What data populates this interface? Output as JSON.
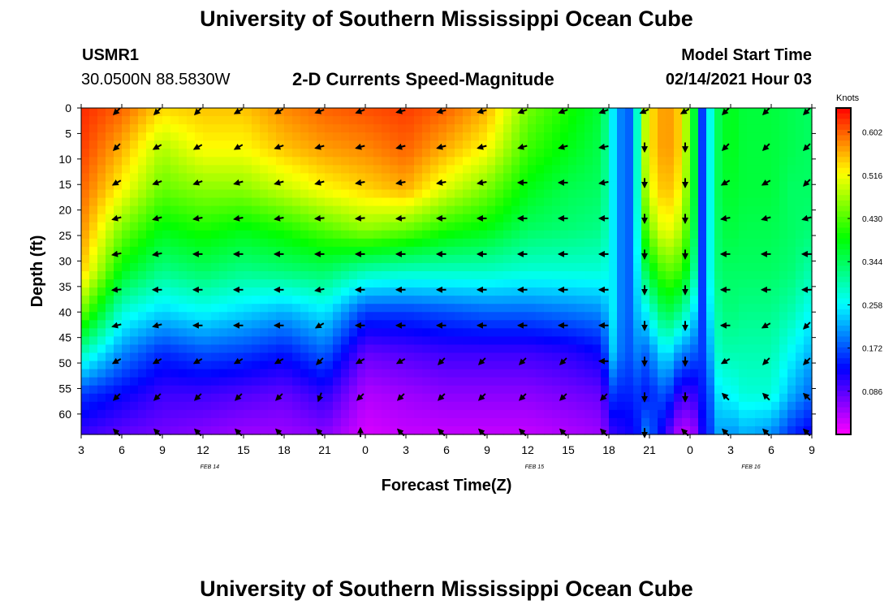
{
  "page": {
    "title": "University of Southern Mississippi Ocean Cube",
    "footer_title": "University of Southern Mississippi Ocean Cube",
    "station_id": "USMR1",
    "station_coords": "30.0500N 88.5830W",
    "plot_subtitle": "2-D Currents Speed-Magnitude",
    "model_start_label": "Model Start Time",
    "model_start_value": "02/14/2021 Hour 03"
  },
  "chart_data": {
    "type": "heatmap",
    "title": "2-D Currents Speed-Magnitude",
    "xlabel": "Forecast Time(Z)",
    "ylabel": "Depth (ft)",
    "colorbar_label": "Knots",
    "x_tick_labels": [
      "3",
      "6",
      "9",
      "12",
      "15",
      "18",
      "21",
      "0",
      "3",
      "6",
      "9",
      "12",
      "15",
      "18",
      "21",
      "0",
      "3",
      "6",
      "9"
    ],
    "x_hours_range": [
      0,
      54
    ],
    "date_labels": [
      {
        "label": "FEB 14",
        "hour": 9.5
      },
      {
        "label": "FEB 15",
        "hour": 33.5
      },
      {
        "label": "FEB 16",
        "hour": 49.5
      }
    ],
    "y_ticks": [
      0,
      5,
      10,
      15,
      20,
      25,
      30,
      35,
      40,
      45,
      50,
      55,
      60
    ],
    "ylim": [
      0,
      64
    ],
    "colorbar_ticks": [
      "0.602",
      "0.516",
      "0.430",
      "0.344",
      "0.258",
      "0.172",
      "0.086"
    ],
    "colorbar_range": [
      0.0,
      0.65
    ],
    "speed_columns_hours": [
      0,
      3,
      6,
      9,
      12,
      15,
      18,
      21,
      24,
      27,
      30,
      33,
      36,
      38.5,
      39.2,
      40.3,
      40.9,
      41.8,
      43.2,
      44.3,
      45.2,
      45.9,
      46.5,
      47.2,
      48,
      49,
      51,
      52.5,
      54
    ],
    "speed_rows_depth_ft": [
      0,
      8,
      16,
      24,
      32,
      40,
      48,
      56,
      64
    ],
    "speed_knots": [
      [
        0.63,
        0.62,
        0.6,
        0.58,
        0.55,
        0.45,
        0.3,
        0.16,
        0.1
      ],
      [
        0.6,
        0.56,
        0.52,
        0.45,
        0.38,
        0.28,
        0.2,
        0.13,
        0.08
      ],
      [
        0.54,
        0.48,
        0.44,
        0.38,
        0.32,
        0.24,
        0.15,
        0.1,
        0.07
      ],
      [
        0.55,
        0.52,
        0.46,
        0.4,
        0.34,
        0.26,
        0.17,
        0.1,
        0.06
      ],
      [
        0.55,
        0.52,
        0.46,
        0.38,
        0.32,
        0.24,
        0.16,
        0.09,
        0.05
      ],
      [
        0.58,
        0.55,
        0.49,
        0.4,
        0.33,
        0.22,
        0.14,
        0.08,
        0.05
      ],
      [
        0.6,
        0.57,
        0.52,
        0.43,
        0.34,
        0.25,
        0.18,
        0.11,
        0.06
      ],
      [
        0.61,
        0.58,
        0.54,
        0.46,
        0.3,
        0.16,
        0.08,
        0.04,
        0.02
      ],
      [
        0.62,
        0.6,
        0.56,
        0.44,
        0.29,
        0.16,
        0.09,
        0.05,
        0.03
      ],
      [
        0.6,
        0.56,
        0.5,
        0.4,
        0.29,
        0.17,
        0.1,
        0.06,
        0.03
      ],
      [
        0.56,
        0.52,
        0.45,
        0.38,
        0.29,
        0.18,
        0.1,
        0.06,
        0.03
      ],
      [
        0.45,
        0.42,
        0.38,
        0.34,
        0.28,
        0.18,
        0.1,
        0.06,
        0.03
      ],
      [
        0.4,
        0.38,
        0.35,
        0.33,
        0.28,
        0.19,
        0.11,
        0.07,
        0.04
      ],
      [
        0.36,
        0.35,
        0.34,
        0.32,
        0.28,
        0.2,
        0.13,
        0.08,
        0.05
      ],
      [
        0.26,
        0.26,
        0.26,
        0.26,
        0.26,
        0.26,
        0.24,
        0.16,
        0.1
      ],
      [
        0.16,
        0.16,
        0.16,
        0.16,
        0.16,
        0.16,
        0.16,
        0.14,
        0.12
      ],
      [
        0.22,
        0.22,
        0.22,
        0.22,
        0.22,
        0.22,
        0.2,
        0.16,
        0.12
      ],
      [
        0.52,
        0.52,
        0.5,
        0.44,
        0.36,
        0.26,
        0.18,
        0.14,
        0.2
      ],
      [
        0.58,
        0.58,
        0.56,
        0.52,
        0.44,
        0.36,
        0.26,
        0.18,
        0.1
      ],
      [
        0.54,
        0.54,
        0.52,
        0.48,
        0.42,
        0.32,
        0.2,
        0.1,
        0.03
      ],
      [
        0.4,
        0.4,
        0.4,
        0.38,
        0.34,
        0.26,
        0.18,
        0.1,
        0.04
      ],
      [
        0.16,
        0.16,
        0.16,
        0.16,
        0.16,
        0.16,
        0.16,
        0.14,
        0.12
      ],
      [
        0.27,
        0.27,
        0.27,
        0.27,
        0.27,
        0.25,
        0.22,
        0.18,
        0.16
      ],
      [
        0.36,
        0.36,
        0.36,
        0.35,
        0.34,
        0.32,
        0.3,
        0.26,
        0.22
      ],
      [
        0.38,
        0.38,
        0.37,
        0.36,
        0.34,
        0.33,
        0.3,
        0.26,
        0.2
      ],
      [
        0.36,
        0.36,
        0.36,
        0.35,
        0.34,
        0.32,
        0.3,
        0.28,
        0.22
      ],
      [
        0.36,
        0.36,
        0.36,
        0.35,
        0.34,
        0.32,
        0.3,
        0.28,
        0.2
      ],
      [
        0.35,
        0.35,
        0.34,
        0.34,
        0.33,
        0.3,
        0.26,
        0.22,
        0.15
      ],
      [
        0.34,
        0.34,
        0.34,
        0.33,
        0.3,
        0.26,
        0.22,
        0.18,
        0.12
      ]
    ],
    "arrow_rows_depth_ft": [
      0,
      7,
      14,
      21,
      28,
      35,
      42,
      49,
      56,
      63
    ],
    "arrow_columns_hours": [
      3,
      6,
      9,
      12,
      15,
      18,
      21,
      24,
      27,
      30,
      33,
      36,
      39,
      42,
      45,
      48,
      51,
      54
    ],
    "arrow_direction_deg_screen": [
      [
        135,
        135,
        135,
        150,
        150,
        160,
        160,
        165,
        165,
        165,
        160,
        160,
        160,
        155,
        150,
        135,
        135,
        135
      ],
      [
        135,
        150,
        150,
        150,
        160,
        165,
        165,
        165,
        165,
        165,
        165,
        165,
        170,
        90,
        90,
        135,
        135,
        135
      ],
      [
        150,
        160,
        160,
        165,
        165,
        165,
        170,
        170,
        170,
        170,
        180,
        180,
        170,
        90,
        90,
        150,
        150,
        135
      ],
      [
        165,
        165,
        170,
        170,
        170,
        175,
        175,
        175,
        180,
        180,
        180,
        180,
        180,
        90,
        90,
        170,
        165,
        165
      ],
      [
        170,
        170,
        180,
        180,
        180,
        180,
        180,
        180,
        180,
        180,
        180,
        180,
        180,
        90,
        90,
        180,
        180,
        180
      ],
      [
        175,
        180,
        180,
        180,
        180,
        170,
        180,
        180,
        180,
        180,
        180,
        180,
        180,
        90,
        90,
        180,
        180,
        180
      ],
      [
        165,
        165,
        180,
        180,
        180,
        150,
        180,
        180,
        180,
        180,
        180,
        180,
        180,
        90,
        90,
        180,
        150,
        135
      ],
      [
        150,
        150,
        150,
        150,
        150,
        135,
        150,
        150,
        135,
        135,
        135,
        135,
        180,
        90,
        90,
        150,
        135,
        135
      ],
      [
        135,
        135,
        135,
        135,
        135,
        110,
        135,
        135,
        135,
        135,
        135,
        135,
        135,
        90,
        90,
        225,
        225,
        225
      ],
      [
        225,
        225,
        225,
        225,
        225,
        225,
        270,
        225,
        225,
        225,
        225,
        225,
        225,
        90,
        225,
        225,
        225,
        225
      ]
    ]
  }
}
